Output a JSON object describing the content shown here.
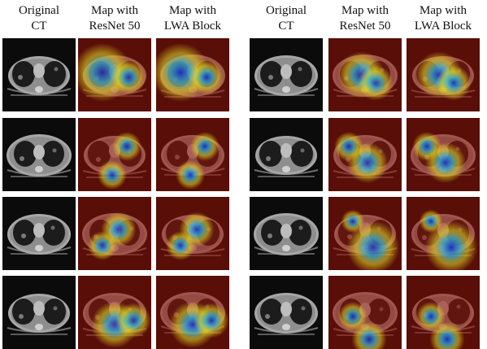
{
  "figure": {
    "groups": [
      {
        "headers": [
          {
            "line1": "Original",
            "line2": "CT"
          },
          {
            "line1": "Map with",
            "line2": "ResNet 50"
          },
          {
            "line1": "Map with",
            "line2": "LWA Block"
          }
        ]
      },
      {
        "headers": [
          {
            "line1": "Original",
            "line2": "CT"
          },
          {
            "line1": "Map with",
            "line2": "ResNet 50"
          },
          {
            "line1": "Map with",
            "line2": "LWA Block"
          }
        ]
      }
    ],
    "colors": {
      "background": "#ffffff",
      "ct_dark": "#0b0b0b",
      "ct_tissue": "#a7a7a7",
      "lung": "#1c1c1c",
      "heat_low": "#9a1208",
      "heat_mid": "#e8e020",
      "heat_high": "#1a2fc4"
    }
  }
}
